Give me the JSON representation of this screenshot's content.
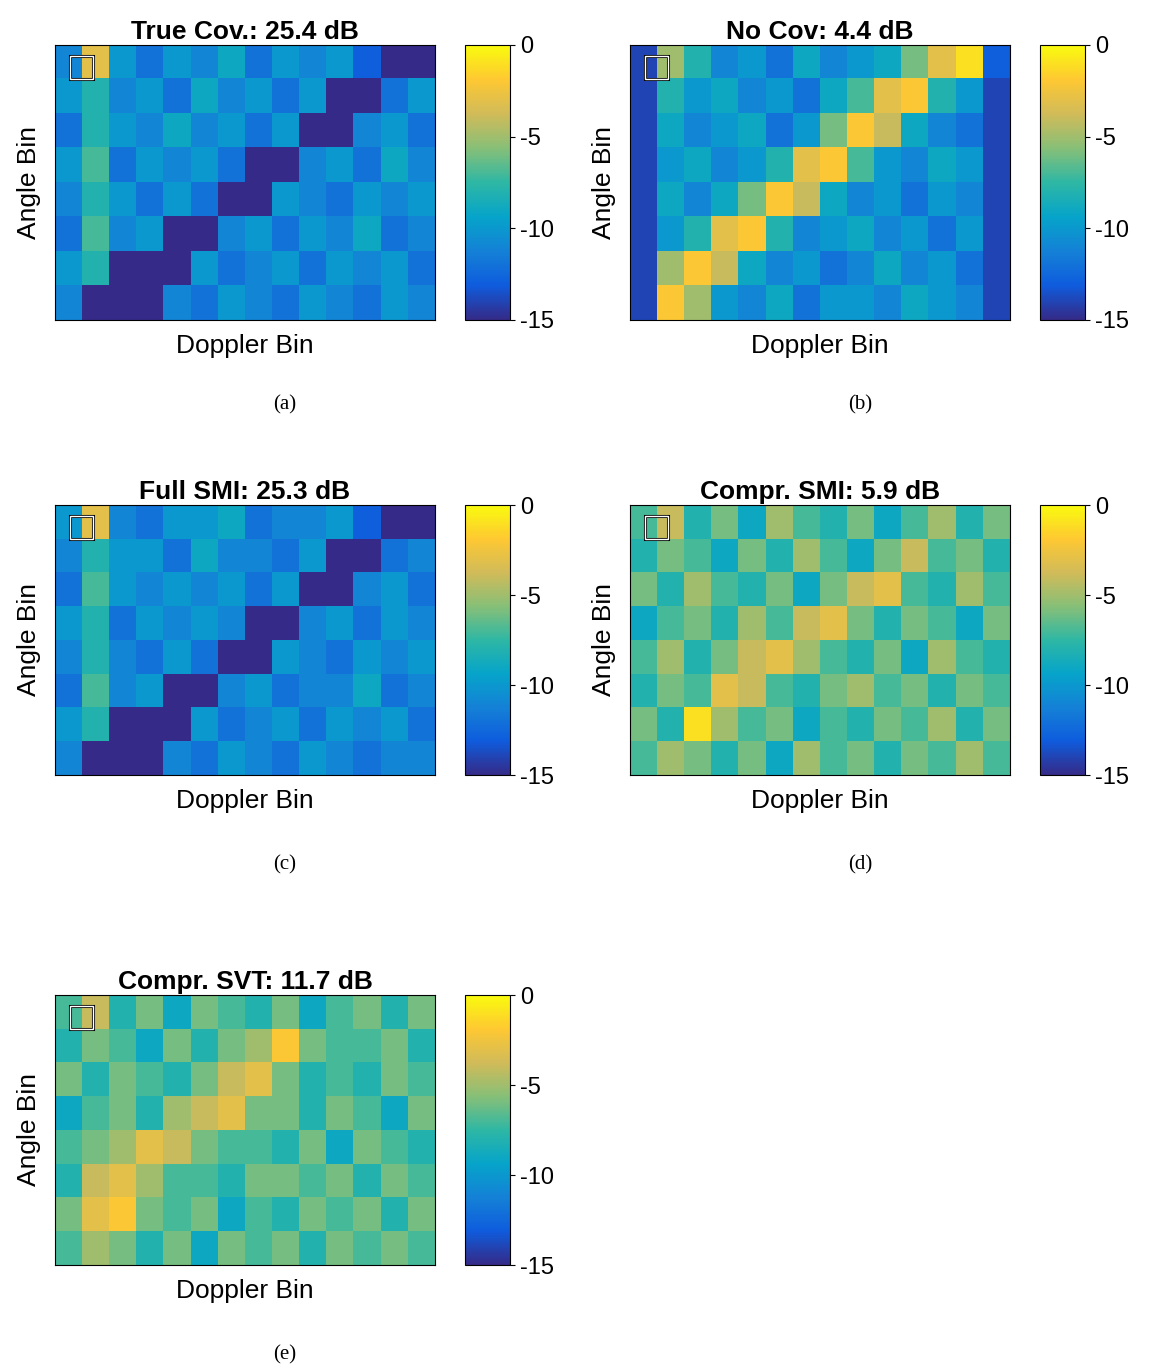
{
  "chart_data": [
    {
      "type": "heatmap",
      "title": "True Cov.: 25.4 dB",
      "x_label": "Doppler Bin",
      "y_label": "Angle Bin",
      "caption": "(a)",
      "tick_labels": false,
      "colorbar": {
        "range": [
          -15,
          0
        ],
        "ticks": [
          0,
          -5,
          -10,
          -15
        ]
      },
      "cells": [
        [
          -11,
          -3,
          -10,
          -12,
          -10,
          -11,
          -9,
          -12,
          -10,
          -11,
          -10,
          -13,
          -15,
          -15
        ],
        [
          -10,
          -8,
          -11,
          -10,
          -12,
          -9,
          -11,
          -10,
          -12,
          -10,
          -15,
          -15,
          -12,
          -10
        ],
        [
          -12,
          -8,
          -10,
          -11,
          -9,
          -11,
          -10,
          -12,
          -10,
          -15,
          -15,
          -11,
          -10,
          -12
        ],
        [
          -10,
          -7,
          -12,
          -10,
          -11,
          -10,
          -12,
          -15,
          -15,
          -11,
          -10,
          -12,
          -9,
          -11
        ],
        [
          -11,
          -8,
          -10,
          -12,
          -10,
          -12,
          -15,
          -15,
          -10,
          -11,
          -12,
          -10,
          -11,
          -10
        ],
        [
          -12,
          -7,
          -11,
          -10,
          -15,
          -15,
          -11,
          -10,
          -12,
          -10,
          -11,
          -9,
          -12,
          -11
        ],
        [
          -10,
          -8,
          -15,
          -15,
          -15,
          -10,
          -12,
          -11,
          -10,
          -12,
          -10,
          -11,
          -10,
          -12
        ],
        [
          -11,
          -15,
          -15,
          -15,
          -11,
          -12,
          -10,
          -11,
          -12,
          -10,
          -11,
          -12,
          -10,
          -11
        ]
      ]
    },
    {
      "type": "heatmap",
      "title": "No Cov: 4.4 dB",
      "x_label": "Doppler Bin",
      "y_label": "Angle Bin",
      "caption": "(b)",
      "tick_labels": false,
      "colorbar": {
        "range": [
          -15,
          0
        ],
        "ticks": [
          0,
          -5,
          -10,
          -15
        ]
      },
      "cells": [
        [
          -14,
          -5,
          -8,
          -11,
          -10,
          -12,
          -9,
          -11,
          -10,
          -9,
          -6,
          -3,
          -1,
          -13
        ],
        [
          -14,
          -8,
          -10,
          -9,
          -11,
          -10,
          -12,
          -9,
          -7,
          -3,
          -2,
          -8,
          -10,
          -14
        ],
        [
          -14,
          -9,
          -11,
          -10,
          -9,
          -12,
          -10,
          -6,
          -2,
          -4,
          -9,
          -11,
          -12,
          -14
        ],
        [
          -14,
          -10,
          -9,
          -11,
          -10,
          -8,
          -3,
          -2,
          -7,
          -10,
          -11,
          -9,
          -10,
          -14
        ],
        [
          -14,
          -9,
          -11,
          -9,
          -6,
          -2,
          -4,
          -9,
          -11,
          -10,
          -12,
          -10,
          -11,
          -14
        ],
        [
          -14,
          -10,
          -8,
          -3,
          -2,
          -8,
          -11,
          -10,
          -9,
          -11,
          -10,
          -12,
          -10,
          -14
        ],
        [
          -14,
          -5,
          -2,
          -4,
          -9,
          -11,
          -10,
          -12,
          -11,
          -9,
          -11,
          -10,
          -12,
          -14
        ],
        [
          -14,
          -2,
          -5,
          -10,
          -11,
          -9,
          -12,
          -10,
          -10,
          -11,
          -9,
          -10,
          -11,
          -14
        ]
      ]
    },
    {
      "type": "heatmap",
      "title": "Full SMI: 25.3 dB",
      "x_label": "Doppler Bin",
      "y_label": "Angle Bin",
      "caption": "(c)",
      "tick_labels": false,
      "colorbar": {
        "range": [
          -15,
          0
        ],
        "ticks": [
          0,
          -5,
          -10,
          -15
        ]
      },
      "cells": [
        [
          -10,
          -3,
          -11,
          -12,
          -10,
          -10,
          -9,
          -12,
          -11,
          -11,
          -10,
          -13,
          -15,
          -15
        ],
        [
          -11,
          -8,
          -10,
          -10,
          -12,
          -9,
          -11,
          -11,
          -12,
          -10,
          -15,
          -15,
          -12,
          -11
        ],
        [
          -12,
          -7,
          -10,
          -11,
          -10,
          -11,
          -10,
          -12,
          -10,
          -15,
          -15,
          -11,
          -10,
          -12
        ],
        [
          -10,
          -8,
          -12,
          -10,
          -11,
          -10,
          -11,
          -15,
          -15,
          -11,
          -10,
          -12,
          -10,
          -11
        ],
        [
          -11,
          -8,
          -11,
          -12,
          -10,
          -12,
          -15,
          -15,
          -10,
          -11,
          -12,
          -10,
          -11,
          -10
        ],
        [
          -12,
          -7,
          -11,
          -10,
          -15,
          -15,
          -11,
          -10,
          -12,
          -11,
          -11,
          -9,
          -12,
          -11
        ],
        [
          -10,
          -8,
          -15,
          -15,
          -15,
          -10,
          -12,
          -11,
          -10,
          -12,
          -10,
          -11,
          -10,
          -12
        ],
        [
          -11,
          -15,
          -15,
          -15,
          -11,
          -12,
          -10,
          -11,
          -12,
          -10,
          -11,
          -12,
          -11,
          -11
        ]
      ]
    },
    {
      "type": "heatmap",
      "title": "Compr. SMI: 5.9 dB",
      "x_label": "Doppler Bin",
      "y_label": "Angle Bin",
      "caption": "(d)",
      "tick_labels": false,
      "colorbar": {
        "range": [
          -15,
          0
        ],
        "ticks": [
          0,
          -5,
          -10,
          -15
        ]
      },
      "cells": [
        [
          -7,
          -4,
          -8,
          -6,
          -9,
          -5,
          -7,
          -8,
          -6,
          -9,
          -7,
          -5,
          -8,
          -6
        ],
        [
          -8,
          -6,
          -7,
          -9,
          -6,
          -8,
          -5,
          -7,
          -9,
          -6,
          -4,
          -7,
          -6,
          -8
        ],
        [
          -6,
          -8,
          -5,
          -7,
          -8,
          -6,
          -9,
          -6,
          -4,
          -3,
          -7,
          -8,
          -5,
          -7
        ],
        [
          -9,
          -7,
          -6,
          -8,
          -5,
          -7,
          -4,
          -3,
          -6,
          -8,
          -6,
          -7,
          -9,
          -6
        ],
        [
          -7,
          -5,
          -8,
          -6,
          -4,
          -3,
          -5,
          -7,
          -8,
          -6,
          -9,
          -5,
          -7,
          -8
        ],
        [
          -8,
          -6,
          -7,
          -3,
          -4,
          -7,
          -8,
          -6,
          -5,
          -7,
          -6,
          -8,
          -6,
          -7
        ],
        [
          -6,
          -8,
          -1,
          -5,
          -7,
          -6,
          -9,
          -7,
          -8,
          -6,
          -7,
          -5,
          -8,
          -6
        ],
        [
          -7,
          -5,
          -6,
          -8,
          -6,
          -9,
          -5,
          -7,
          -6,
          -8,
          -6,
          -7,
          -5,
          -7
        ]
      ]
    },
    {
      "type": "heatmap",
      "title": "Compr. SVT: 11.7 dB",
      "x_label": "Doppler Bin",
      "y_label": "Angle Bin",
      "caption": "(e)",
      "tick_labels": false,
      "colorbar": {
        "range": [
          -15,
          0
        ],
        "ticks": [
          0,
          -5,
          -10,
          -15
        ]
      },
      "cells": [
        [
          -7,
          -4,
          -8,
          -6,
          -9,
          -6,
          -7,
          -8,
          -6,
          -9,
          -7,
          -6,
          -8,
          -6
        ],
        [
          -8,
          -6,
          -7,
          -9,
          -6,
          -8,
          -6,
          -5,
          -2,
          -6,
          -7,
          -7,
          -6,
          -8
        ],
        [
          -6,
          -8,
          -6,
          -7,
          -8,
          -6,
          -4,
          -3,
          -6,
          -8,
          -7,
          -8,
          -6,
          -7
        ],
        [
          -9,
          -7,
          -6,
          -8,
          -5,
          -4,
          -3,
          -6,
          -6,
          -8,
          -6,
          -7,
          -9,
          -6
        ],
        [
          -7,
          -6,
          -5,
          -3,
          -4,
          -6,
          -7,
          -7,
          -8,
          -6,
          -9,
          -6,
          -7,
          -8
        ],
        [
          -8,
          -4,
          -3,
          -5,
          -7,
          -7,
          -8,
          -6,
          -6,
          -7,
          -6,
          -8,
          -6,
          -7
        ],
        [
          -6,
          -3,
          -2,
          -6,
          -7,
          -6,
          -9,
          -7,
          -8,
          -6,
          -7,
          -6,
          -8,
          -6
        ],
        [
          -7,
          -5,
          -6,
          -8,
          -6,
          -9,
          -6,
          -7,
          -6,
          -8,
          -6,
          -7,
          -6,
          -7
        ]
      ]
    }
  ]
}
